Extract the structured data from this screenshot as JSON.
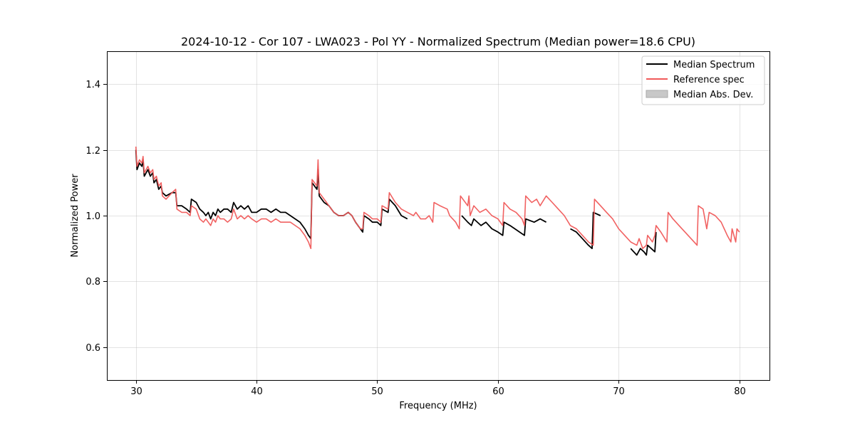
{
  "chart_data": {
    "type": "line",
    "title": "2024-10-12 - Cor 107 - LWA023 - Pol YY - Normalized Spectrum (Median power=18.6 CPU)",
    "xlabel": "Frequency (MHz)",
    "ylabel": "Normalized Power",
    "xlim": [
      27.6,
      82.5
    ],
    "ylim": [
      0.5,
      1.5
    ],
    "xticks": [
      30,
      40,
      50,
      60,
      70,
      80
    ],
    "xtick_labels": [
      "30",
      "40",
      "50",
      "60",
      "70",
      "80"
    ],
    "yticks": [
      0.6,
      0.8,
      1.0,
      1.2,
      1.4
    ],
    "ytick_labels": [
      "0.6",
      "0.8",
      "1.0",
      "1.2",
      "1.4"
    ],
    "grid": true,
    "legend_position": "top-right",
    "series": [
      {
        "name": "Median Spectrum",
        "color": "#000000",
        "segments": [
          [
            [
              30.0,
              1.2
            ],
            [
              30.1,
              1.14
            ],
            [
              30.3,
              1.16
            ],
            [
              30.5,
              1.15
            ],
            [
              30.6,
              1.17
            ],
            [
              30.7,
              1.12
            ],
            [
              31.0,
              1.14
            ],
            [
              31.2,
              1.12
            ],
            [
              31.4,
              1.13
            ],
            [
              31.5,
              1.1
            ],
            [
              31.7,
              1.11
            ],
            [
              31.9,
              1.08
            ],
            [
              32.1,
              1.09
            ],
            [
              32.2,
              1.07
            ],
            [
              32.5,
              1.06
            ],
            [
              33.0,
              1.07
            ],
            [
              33.3,
              1.07
            ],
            [
              33.4,
              1.03
            ],
            [
              33.8,
              1.03
            ],
            [
              34.2,
              1.02
            ],
            [
              34.5,
              1.01
            ],
            [
              34.6,
              1.05
            ],
            [
              35.0,
              1.04
            ],
            [
              35.3,
              1.02
            ],
            [
              35.6,
              1.01
            ],
            [
              35.8,
              1.0
            ],
            [
              36.0,
              1.01
            ],
            [
              36.2,
              0.99
            ],
            [
              36.4,
              1.01
            ],
            [
              36.6,
              1.0
            ],
            [
              36.8,
              1.02
            ],
            [
              37.0,
              1.01
            ],
            [
              37.3,
              1.02
            ],
            [
              37.6,
              1.02
            ],
            [
              37.9,
              1.01
            ],
            [
              38.1,
              1.04
            ],
            [
              38.4,
              1.02
            ],
            [
              38.7,
              1.03
            ],
            [
              39.0,
              1.02
            ],
            [
              39.3,
              1.03
            ],
            [
              39.6,
              1.01
            ],
            [
              40.0,
              1.01
            ],
            [
              40.4,
              1.02
            ],
            [
              40.8,
              1.02
            ],
            [
              41.2,
              1.01
            ],
            [
              41.6,
              1.02
            ],
            [
              42.0,
              1.01
            ],
            [
              42.4,
              1.01
            ],
            [
              42.8,
              1.0
            ],
            [
              43.2,
              0.99
            ],
            [
              43.6,
              0.98
            ],
            [
              44.0,
              0.96
            ],
            [
              44.3,
              0.94
            ],
            [
              44.5,
              0.93
            ],
            [
              44.6,
              1.1
            ],
            [
              45.0,
              1.08
            ],
            [
              45.1,
              1.14
            ],
            [
              45.2,
              1.06
            ],
            [
              45.6,
              1.04
            ],
            [
              46.0,
              1.03
            ],
            [
              46.4,
              1.01
            ],
            [
              46.8,
              1.0
            ],
            [
              47.2,
              1.0
            ],
            [
              47.6,
              1.01
            ],
            [
              47.9,
              1.0
            ],
            [
              48.2,
              0.98
            ],
            [
              48.6,
              0.96
            ],
            [
              48.8,
              0.95
            ],
            [
              48.9,
              1.0
            ],
            [
              49.3,
              0.99
            ],
            [
              49.6,
              0.98
            ],
            [
              50.0,
              0.98
            ],
            [
              50.3,
              0.97
            ],
            [
              50.4,
              1.02
            ],
            [
              50.9,
              1.01
            ],
            [
              51.0,
              1.05
            ],
            [
              51.5,
              1.03
            ],
            [
              52.0,
              1.0
            ],
            [
              52.5,
              0.99
            ]
          ],
          [
            [
              57.0,
              1.0
            ],
            [
              57.5,
              0.98
            ],
            [
              57.8,
              0.97
            ],
            [
              58.0,
              0.99
            ],
            [
              58.6,
              0.97
            ],
            [
              59.0,
              0.98
            ],
            [
              59.5,
              0.96
            ],
            [
              60.0,
              0.95
            ],
            [
              60.4,
              0.94
            ],
            [
              60.5,
              0.98
            ],
            [
              61.0,
              0.97
            ],
            [
              61.4,
              0.96
            ],
            [
              61.8,
              0.95
            ],
            [
              62.2,
              0.94
            ],
            [
              62.3,
              0.99
            ],
            [
              63.0,
              0.98
            ],
            [
              63.5,
              0.99
            ],
            [
              64.0,
              0.98
            ]
          ],
          [
            [
              66.0,
              0.96
            ],
            [
              66.5,
              0.95
            ],
            [
              67.0,
              0.93
            ],
            [
              67.5,
              0.91
            ],
            [
              67.8,
              0.9
            ],
            [
              67.9,
              1.01
            ],
            [
              68.5,
              1.0
            ]
          ],
          [
            [
              71.0,
              0.9
            ],
            [
              71.5,
              0.88
            ],
            [
              71.8,
              0.9
            ],
            [
              72.1,
              0.89
            ],
            [
              72.3,
              0.88
            ],
            [
              72.4,
              0.91
            ],
            [
              72.7,
              0.9
            ],
            [
              73.0,
              0.89
            ],
            [
              73.1,
              0.95
            ]
          ]
        ]
      },
      {
        "name": "Reference spec",
        "color": "#f05a5a",
        "segments": [
          [
            [
              30.0,
              1.21
            ],
            [
              30.1,
              1.15
            ],
            [
              30.3,
              1.17
            ],
            [
              30.5,
              1.16
            ],
            [
              30.6,
              1.18
            ],
            [
              30.7,
              1.13
            ],
            [
              31.0,
              1.15
            ],
            [
              31.2,
              1.13
            ],
            [
              31.4,
              1.14
            ],
            [
              31.5,
              1.11
            ],
            [
              31.7,
              1.12
            ],
            [
              31.9,
              1.09
            ],
            [
              32.1,
              1.1
            ],
            [
              32.2,
              1.06
            ],
            [
              32.5,
              1.05
            ],
            [
              33.0,
              1.07
            ],
            [
              33.3,
              1.08
            ],
            [
              33.4,
              1.02
            ],
            [
              33.8,
              1.01
            ],
            [
              34.2,
              1.01
            ],
            [
              34.5,
              1.0
            ],
            [
              34.6,
              1.03
            ],
            [
              35.0,
              1.02
            ],
            [
              35.3,
              0.99
            ],
            [
              35.6,
              0.98
            ],
            [
              35.8,
              0.99
            ],
            [
              36.0,
              0.98
            ],
            [
              36.2,
              0.97
            ],
            [
              36.4,
              0.99
            ],
            [
              36.6,
              0.98
            ],
            [
              36.8,
              1.0
            ],
            [
              37.0,
              0.99
            ],
            [
              37.3,
              0.99
            ],
            [
              37.6,
              0.98
            ],
            [
              37.9,
              0.99
            ],
            [
              38.1,
              1.02
            ],
            [
              38.4,
              0.99
            ],
            [
              38.7,
              1.0
            ],
            [
              39.0,
              0.99
            ],
            [
              39.3,
              1.0
            ],
            [
              39.6,
              0.99
            ],
            [
              40.0,
              0.98
            ],
            [
              40.4,
              0.99
            ],
            [
              40.8,
              0.99
            ],
            [
              41.2,
              0.98
            ],
            [
              41.6,
              0.99
            ],
            [
              42.0,
              0.98
            ],
            [
              42.4,
              0.98
            ],
            [
              42.8,
              0.98
            ],
            [
              43.2,
              0.97
            ],
            [
              43.6,
              0.96
            ],
            [
              44.0,
              0.94
            ],
            [
              44.3,
              0.92
            ],
            [
              44.5,
              0.9
            ],
            [
              44.6,
              1.11
            ],
            [
              45.0,
              1.09
            ],
            [
              45.1,
              1.17
            ],
            [
              45.2,
              1.07
            ],
            [
              45.6,
              1.05
            ],
            [
              46.0,
              1.03
            ],
            [
              46.4,
              1.01
            ],
            [
              46.8,
              1.0
            ],
            [
              47.2,
              1.0
            ],
            [
              47.6,
              1.01
            ],
            [
              47.9,
              1.0
            ],
            [
              48.2,
              0.98
            ],
            [
              48.6,
              0.96
            ],
            [
              48.8,
              0.96
            ],
            [
              48.9,
              1.01
            ],
            [
              49.3,
              1.0
            ],
            [
              49.6,
              0.99
            ],
            [
              50.0,
              0.99
            ],
            [
              50.3,
              0.98
            ],
            [
              50.4,
              1.03
            ],
            [
              50.9,
              1.02
            ],
            [
              51.0,
              1.07
            ],
            [
              51.5,
              1.04
            ],
            [
              52.0,
              1.02
            ],
            [
              52.5,
              1.01
            ],
            [
              53.0,
              1.0
            ],
            [
              53.2,
              1.01
            ],
            [
              53.6,
              0.99
            ],
            [
              54.0,
              0.99
            ],
            [
              54.3,
              1.0
            ],
            [
              54.6,
              0.98
            ],
            [
              54.7,
              1.04
            ],
            [
              55.2,
              1.03
            ],
            [
              55.8,
              1.02
            ],
            [
              56.0,
              1.0
            ],
            [
              56.5,
              0.98
            ],
            [
              56.8,
              0.96
            ],
            [
              56.9,
              1.06
            ],
            [
              57.5,
              1.03
            ],
            [
              57.6,
              1.06
            ],
            [
              57.7,
              1.0
            ],
            [
              58.0,
              1.03
            ],
            [
              58.5,
              1.01
            ],
            [
              59.0,
              1.02
            ],
            [
              59.5,
              1.0
            ],
            [
              60.0,
              0.99
            ],
            [
              60.4,
              0.97
            ],
            [
              60.5,
              1.04
            ],
            [
              61.0,
              1.02
            ],
            [
              61.5,
              1.01
            ],
            [
              62.0,
              0.99
            ],
            [
              62.2,
              0.97
            ],
            [
              62.3,
              1.06
            ],
            [
              62.8,
              1.04
            ],
            [
              63.2,
              1.05
            ],
            [
              63.5,
              1.03
            ],
            [
              64.0,
              1.06
            ],
            [
              64.5,
              1.04
            ],
            [
              65.0,
              1.02
            ],
            [
              65.5,
              1.0
            ],
            [
              66.0,
              0.97
            ],
            [
              66.5,
              0.96
            ],
            [
              67.0,
              0.94
            ],
            [
              67.5,
              0.92
            ],
            [
              67.9,
              0.91
            ],
            [
              68.0,
              1.05
            ],
            [
              68.5,
              1.03
            ],
            [
              69.0,
              1.01
            ],
            [
              69.5,
              0.99
            ],
            [
              70.0,
              0.96
            ],
            [
              70.5,
              0.94
            ],
            [
              71.0,
              0.92
            ],
            [
              71.5,
              0.91
            ],
            [
              71.7,
              0.93
            ],
            [
              72.0,
              0.9
            ],
            [
              72.3,
              0.91
            ],
            [
              72.4,
              0.94
            ],
            [
              72.8,
              0.92
            ],
            [
              73.0,
              0.94
            ],
            [
              73.1,
              0.97
            ],
            [
              73.5,
              0.95
            ],
            [
              74.0,
              0.92
            ],
            [
              74.1,
              1.01
            ],
            [
              74.5,
              0.99
            ],
            [
              75.0,
              0.97
            ],
            [
              75.5,
              0.95
            ],
            [
              76.0,
              0.93
            ],
            [
              76.5,
              0.91
            ],
            [
              76.6,
              1.03
            ],
            [
              77.0,
              1.02
            ],
            [
              77.3,
              0.96
            ],
            [
              77.5,
              1.01
            ],
            [
              78.0,
              1.0
            ],
            [
              78.5,
              0.98
            ],
            [
              79.0,
              0.94
            ],
            [
              79.3,
              0.92
            ],
            [
              79.4,
              0.96
            ],
            [
              79.7,
              0.92
            ],
            [
              79.8,
              0.96
            ],
            [
              80.0,
              0.95
            ]
          ]
        ]
      },
      {
        "name": "Median Abs. Dev.",
        "color": "#c8c8c8",
        "kind": "fill"
      }
    ]
  }
}
